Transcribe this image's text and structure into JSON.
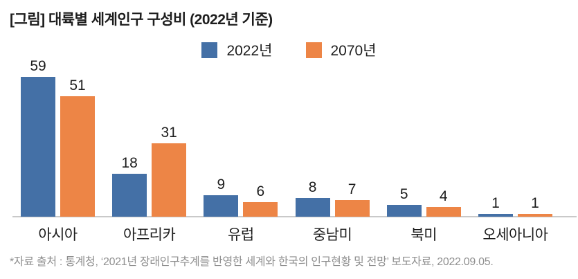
{
  "header": {
    "title": "[그림] 대륙별 세계인구 구성비 (2022년 기준)"
  },
  "legend": [
    {
      "label": "2022년",
      "color": "#4470A6"
    },
    {
      "label": "2070년",
      "color": "#ED8546"
    }
  ],
  "chart_data": {
    "type": "bar",
    "title": "[그림] 대륙별 세계인구 구성비 (2022년 기준)",
    "categories": [
      "아시아",
      "아프리카",
      "유럽",
      "중남미",
      "북미",
      "오세아니아"
    ],
    "series": [
      {
        "name": "2022년",
        "color": "#4470A6",
        "values": [
          59,
          18,
          9,
          8,
          5,
          1
        ]
      },
      {
        "name": "2070년",
        "color": "#ED8546",
        "values": [
          51,
          31,
          6,
          7,
          4,
          1
        ]
      }
    ],
    "xlabel": "",
    "ylabel": "",
    "ylim": [
      0,
      60
    ],
    "grid": false,
    "value_labels": true,
    "legend_position": "top",
    "unit": "percent"
  },
  "footer": {
    "source": "*자료 출처 : 통계청, ‘2021년 장래인구추계를 반영한 세계와 한국의 인구현황 및 전망’ 보도자료, 2022.09.05."
  }
}
